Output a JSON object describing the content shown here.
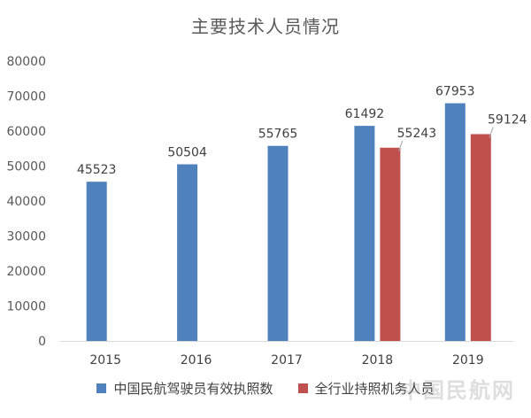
{
  "chart_data": {
    "type": "bar",
    "title": "主要技术人员情况",
    "categories": [
      "2015",
      "2016",
      "2017",
      "2018",
      "2019"
    ],
    "series": [
      {
        "name": "中国民航驾驶员有效执照数",
        "color": "#4f81bd",
        "values": [
          45523,
          50504,
          55765,
          61492,
          67953
        ]
      },
      {
        "name": "全行业持照机务人员",
        "color": "#c0504d",
        "values": [
          null,
          null,
          null,
          55243,
          59124
        ]
      }
    ],
    "ylim": [
      0,
      80000
    ],
    "yticks": [
      "0",
      "10000",
      "20000",
      "30000",
      "40000",
      "50000",
      "60000",
      "70000",
      "80000"
    ],
    "grid": false,
    "legend_position": "bottom"
  },
  "watermark": "中国民航网"
}
